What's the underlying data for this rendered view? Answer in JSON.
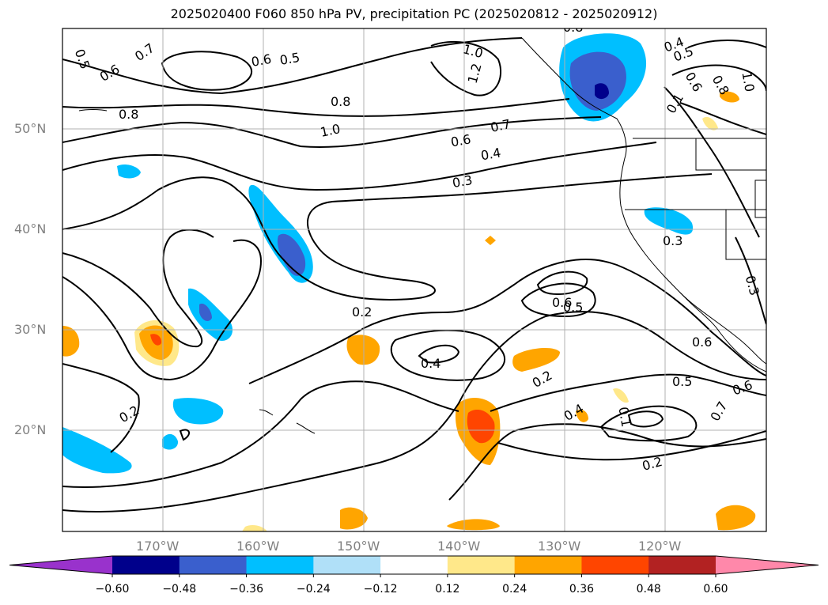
{
  "title": "2025020400 F060 850 hPa PV, precipitation PC (2025020812 - 2025020912)",
  "map": {
    "projection": "cylindrical",
    "lon_range": [
      -180,
      -110
    ],
    "lat_range": [
      10,
      60
    ],
    "lat_labels": [
      "50°N",
      "40°N",
      "30°N",
      "20°N"
    ],
    "lon_labels": [
      "170°W",
      "160°W",
      "150°W",
      "140°W",
      "130°W",
      "120°W"
    ],
    "gridlines": true
  },
  "contour_labels": [
    "0.5",
    "0.6",
    "0.7",
    "0.8",
    "0.6",
    "0.5",
    "1.0",
    "1.2",
    "0.8",
    "0.4",
    "0.5",
    "0.6",
    "0.8",
    "1.0",
    "0.1",
    "0.8",
    "1.0",
    "0.7",
    "0.6",
    "0.4",
    "0.3",
    "0.3",
    "0.2",
    "0.6",
    "0.5",
    "0.4",
    "0.2",
    "0.2",
    "0.4",
    "0.6",
    "0.5",
    "0.7",
    "0.6",
    "0.1",
    "0.2",
    "0.3"
  ],
  "colorbar": {
    "ticks": [
      "−0.60",
      "−0.48",
      "−0.36",
      "−0.24",
      "−0.12",
      "0.12",
      "0.24",
      "0.36",
      "0.48",
      "0.60"
    ],
    "colors": [
      "#9932cc",
      "#00008b",
      "#3a5fcd",
      "#00bfff",
      "#b0e0f8",
      "#ffffff",
      "#ffe88a",
      "#ffa500",
      "#ff4500",
      "#b22222",
      "#ff88aa"
    ]
  },
  "colors": {
    "contour": "#000000",
    "grid": "#b0b0b0",
    "coast": "#000000"
  }
}
